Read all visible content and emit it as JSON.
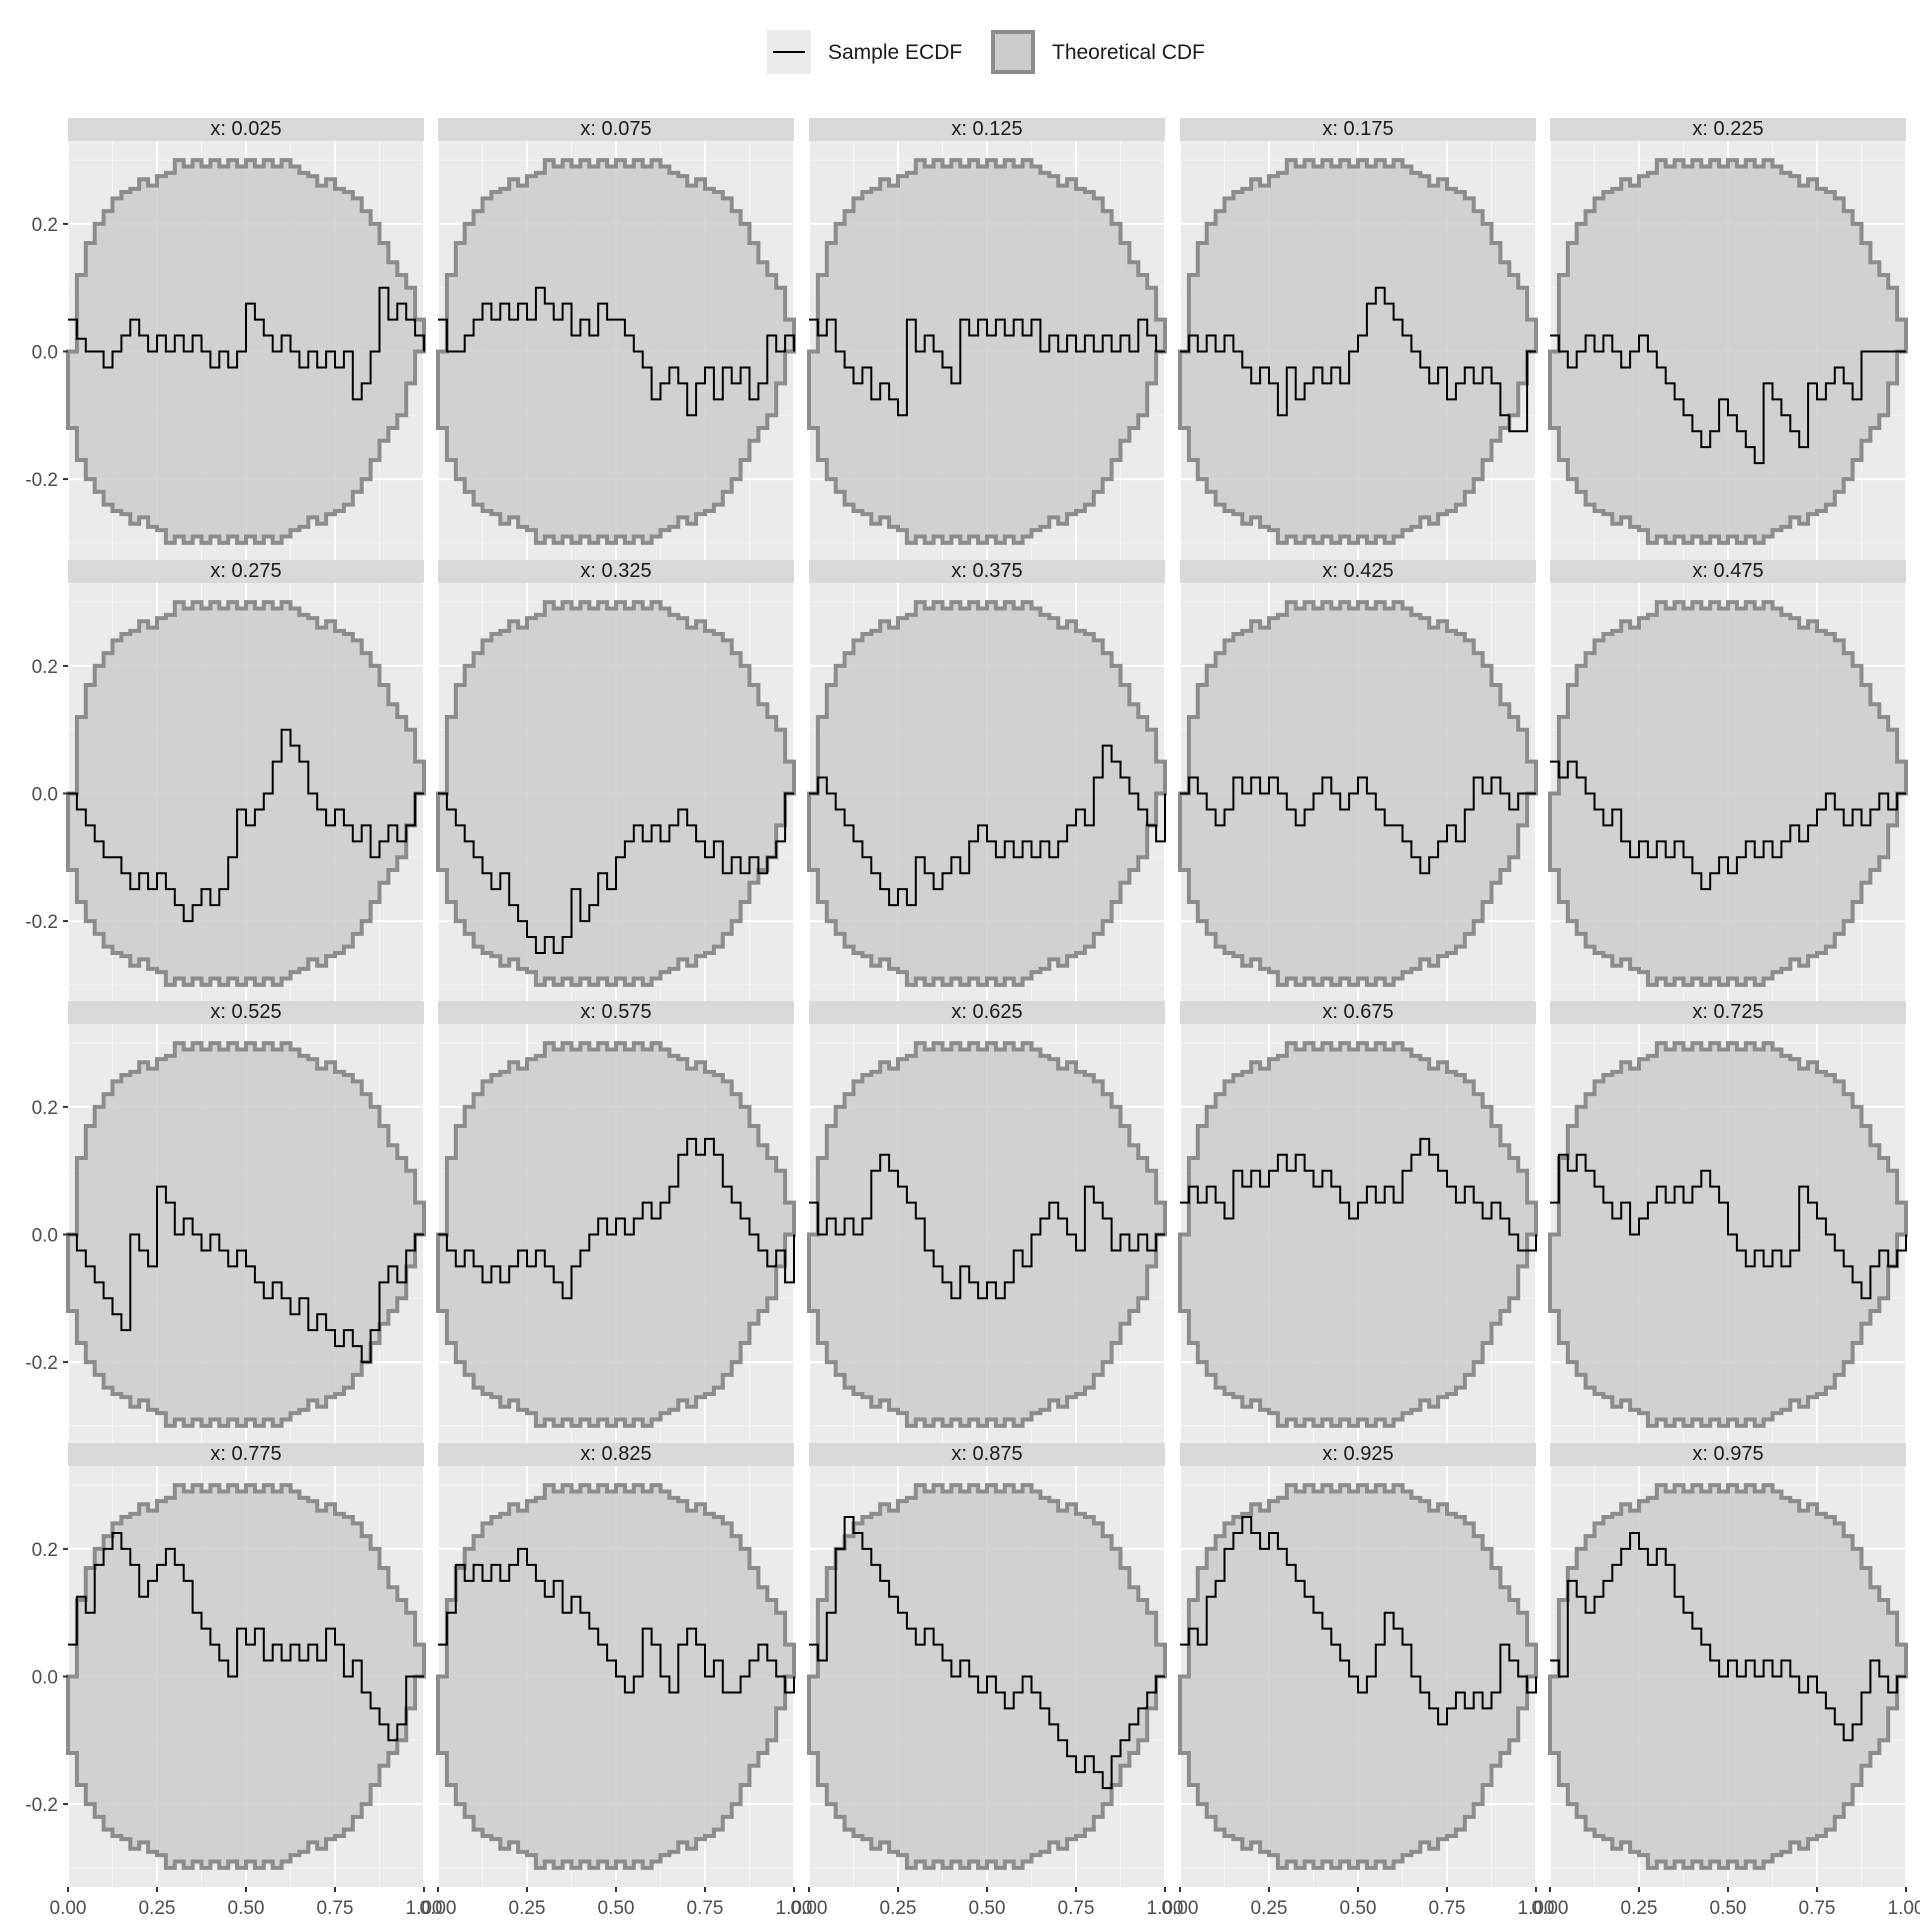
{
  "chart_data": {
    "type": "line",
    "layout": "facet-grid 4x5",
    "x_axis": {
      "range": [
        0,
        1
      ],
      "ticks": [
        "0.00",
        "0.25",
        "0.50",
        "0.75",
        "1.00"
      ]
    },
    "y_axis": {
      "range": [
        -0.33,
        0.33
      ],
      "ticks": [
        "0.2",
        "0.0",
        "-0.2"
      ]
    },
    "legend": {
      "placement": "top",
      "entries": [
        {
          "label": "Sample ECDF",
          "kind": "line",
          "color": "#000000"
        },
        {
          "label": "Theoretical CDF",
          "kind": "band",
          "fill": "#cccccc",
          "stroke": "#8c8c8c"
        }
      ]
    },
    "band_profile": {
      "note_key": "per-step upper envelope of theoretical band (symmetric lower = negative)",
      "x": [
        0,
        0.025,
        0.05,
        0.075,
        0.1,
        0.125,
        0.15,
        0.175,
        0.2,
        0.225,
        0.25,
        0.275,
        0.3,
        0.325,
        0.35,
        0.375,
        0.4,
        0.425,
        0.45,
        0.475,
        0.5,
        0.525,
        0.55,
        0.575,
        0.6,
        0.625,
        0.65,
        0.675,
        0.7,
        0.725,
        0.75,
        0.775,
        0.8,
        0.825,
        0.85,
        0.875,
        0.9,
        0.925,
        0.95,
        0.975,
        1.0
      ],
      "upper": [
        0.0,
        0.12,
        0.17,
        0.2,
        0.22,
        0.24,
        0.25,
        0.255,
        0.27,
        0.26,
        0.275,
        0.28,
        0.3,
        0.29,
        0.3,
        0.29,
        0.3,
        0.29,
        0.3,
        0.29,
        0.3,
        0.29,
        0.3,
        0.29,
        0.3,
        0.29,
        0.28,
        0.275,
        0.26,
        0.27,
        0.255,
        0.25,
        0.24,
        0.22,
        0.2,
        0.17,
        0.14,
        0.12,
        0.1,
        0.05,
        0.0
      ]
    },
    "panels": [
      {
        "label": "x: 0.025",
        "y": [
          0.05,
          0.02,
          0.0,
          0.0,
          -0.025,
          0.0,
          0.025,
          0.05,
          0.025,
          0.0,
          0.025,
          0.0,
          0.025,
          0.0,
          0.025,
          0.0,
          -0.025,
          0.0,
          -0.025,
          0.0,
          0.075,
          0.05,
          0.025,
          0.0,
          0.025,
          0.0,
          -0.025,
          0.0,
          -0.025,
          0.0,
          -0.025,
          0.0,
          -0.075,
          -0.05,
          0.0,
          0.1,
          0.05,
          0.075,
          0.05,
          0.025,
          0.0
        ]
      },
      {
        "label": "x: 0.075",
        "y": [
          0.05,
          0.0,
          0.0,
          0.025,
          0.05,
          0.075,
          0.05,
          0.075,
          0.05,
          0.075,
          0.05,
          0.1,
          0.075,
          0.05,
          0.075,
          0.025,
          0.05,
          0.025,
          0.075,
          0.05,
          0.05,
          0.025,
          0.0,
          -0.025,
          -0.075,
          -0.05,
          -0.025,
          -0.05,
          -0.1,
          -0.05,
          -0.025,
          -0.075,
          -0.025,
          -0.05,
          -0.025,
          -0.075,
          -0.05,
          0.025,
          0.0,
          0.025,
          0.0
        ]
      },
      {
        "label": "x: 0.125",
        "y": [
          0.05,
          0.025,
          0.05,
          0.0,
          -0.025,
          -0.05,
          -0.025,
          -0.075,
          -0.05,
          -0.075,
          -0.1,
          0.05,
          0.0,
          0.025,
          0.0,
          -0.025,
          -0.05,
          0.05,
          0.025,
          0.05,
          0.025,
          0.05,
          0.025,
          0.05,
          0.025,
          0.05,
          0.0,
          0.025,
          0.0,
          0.025,
          0.0,
          0.025,
          0.0,
          0.025,
          0.0,
          0.025,
          0.0,
          0.05,
          0.025,
          0.0,
          0.0
        ]
      },
      {
        "label": "x: 0.175",
        "y": [
          0.0,
          0.025,
          0.0,
          0.025,
          0.0,
          0.025,
          0.0,
          -0.025,
          -0.05,
          -0.025,
          -0.05,
          -0.1,
          -0.025,
          -0.075,
          -0.05,
          -0.025,
          -0.05,
          -0.025,
          -0.05,
          0.0,
          0.025,
          0.075,
          0.1,
          0.075,
          0.05,
          0.025,
          0.0,
          -0.025,
          -0.05,
          -0.025,
          -0.075,
          -0.05,
          -0.025,
          -0.05,
          -0.025,
          -0.05,
          -0.1,
          -0.125,
          -0.125,
          0.0,
          0.0
        ]
      },
      {
        "label": "x: 0.225",
        "y": [
          0.025,
          0.0,
          -0.025,
          0.0,
          0.025,
          0.0,
          0.025,
          0.0,
          -0.025,
          0.0,
          0.025,
          0.0,
          -0.025,
          -0.05,
          -0.075,
          -0.1,
          -0.125,
          -0.15,
          -0.125,
          -0.075,
          -0.1,
          -0.125,
          -0.15,
          -0.175,
          -0.05,
          -0.075,
          -0.1,
          -0.125,
          -0.15,
          -0.05,
          -0.075,
          -0.05,
          -0.025,
          -0.05,
          -0.075,
          0.0,
          0.0,
          0.0,
          0.0,
          0.0,
          0.0
        ]
      },
      {
        "label": "x: 0.275",
        "y": [
          0.0,
          -0.025,
          -0.05,
          -0.075,
          -0.1,
          -0.1,
          -0.125,
          -0.15,
          -0.125,
          -0.15,
          -0.125,
          -0.15,
          -0.175,
          -0.2,
          -0.175,
          -0.15,
          -0.175,
          -0.15,
          -0.1,
          -0.025,
          -0.05,
          -0.025,
          0.0,
          0.05,
          0.1,
          0.075,
          0.05,
          0.0,
          -0.025,
          -0.05,
          -0.025,
          -0.05,
          -0.075,
          -0.05,
          -0.1,
          -0.075,
          -0.05,
          -0.075,
          -0.05,
          0.0,
          0.0
        ]
      },
      {
        "label": "x: 0.325",
        "y": [
          0.0,
          -0.025,
          -0.05,
          -0.075,
          -0.1,
          -0.125,
          -0.15,
          -0.125,
          -0.175,
          -0.2,
          -0.225,
          -0.25,
          -0.225,
          -0.25,
          -0.225,
          -0.15,
          -0.2,
          -0.175,
          -0.125,
          -0.15,
          -0.1,
          -0.075,
          -0.05,
          -0.075,
          -0.05,
          -0.075,
          -0.05,
          -0.025,
          -0.05,
          -0.075,
          -0.1,
          -0.075,
          -0.125,
          -0.1,
          -0.125,
          -0.1,
          -0.125,
          -0.1,
          -0.075,
          0.0,
          0.0
        ]
      },
      {
        "label": "x: 0.375",
        "y": [
          0.0,
          0.025,
          0.0,
          -0.025,
          -0.05,
          -0.075,
          -0.1,
          -0.125,
          -0.15,
          -0.175,
          -0.15,
          -0.175,
          -0.1,
          -0.125,
          -0.15,
          -0.125,
          -0.1,
          -0.125,
          -0.075,
          -0.05,
          -0.075,
          -0.1,
          -0.075,
          -0.1,
          -0.075,
          -0.1,
          -0.075,
          -0.1,
          -0.075,
          -0.05,
          -0.025,
          -0.05,
          0.025,
          0.075,
          0.05,
          0.025,
          0.0,
          -0.025,
          -0.05,
          -0.075,
          0.0
        ]
      },
      {
        "label": "x: 0.425",
        "y": [
          0.0,
          0.025,
          0.0,
          -0.025,
          -0.05,
          -0.025,
          0.025,
          0.0,
          0.025,
          0.0,
          0.025,
          0.0,
          -0.025,
          -0.05,
          -0.025,
          0.0,
          0.025,
          0.0,
          -0.025,
          0.0,
          0.025,
          0.0,
          -0.025,
          -0.05,
          -0.05,
          -0.075,
          -0.1,
          -0.125,
          -0.1,
          -0.075,
          -0.05,
          -0.075,
          -0.025,
          0.025,
          0.0,
          0.025,
          0.0,
          -0.025,
          0.0,
          0.0,
          0.0
        ]
      },
      {
        "label": "x: 0.475",
        "y": [
          0.05,
          0.025,
          0.05,
          0.025,
          0.0,
          -0.025,
          -0.05,
          -0.025,
          -0.075,
          -0.1,
          -0.075,
          -0.1,
          -0.075,
          -0.1,
          -0.075,
          -0.1,
          -0.125,
          -0.15,
          -0.125,
          -0.1,
          -0.125,
          -0.1,
          -0.075,
          -0.1,
          -0.075,
          -0.1,
          -0.075,
          -0.05,
          -0.075,
          -0.05,
          -0.025,
          0.0,
          -0.025,
          -0.05,
          -0.025,
          -0.05,
          -0.025,
          0.0,
          -0.025,
          0.0,
          0.0
        ]
      },
      {
        "label": "x: 0.525",
        "y": [
          0.0,
          -0.025,
          -0.05,
          -0.075,
          -0.1,
          -0.125,
          -0.15,
          0.0,
          -0.025,
          -0.05,
          0.075,
          0.05,
          0.0,
          0.025,
          0.0,
          -0.025,
          0.0,
          -0.025,
          -0.05,
          -0.025,
          -0.05,
          -0.075,
          -0.1,
          -0.075,
          -0.1,
          -0.125,
          -0.1,
          -0.15,
          -0.125,
          -0.15,
          -0.175,
          -0.15,
          -0.175,
          -0.2,
          -0.15,
          -0.075,
          -0.05,
          -0.075,
          -0.025,
          0.0,
          0.0
        ]
      },
      {
        "label": "x: 0.575",
        "y": [
          0.0,
          -0.025,
          -0.05,
          -0.025,
          -0.05,
          -0.075,
          -0.05,
          -0.075,
          -0.05,
          -0.025,
          -0.05,
          -0.025,
          -0.05,
          -0.075,
          -0.1,
          -0.05,
          -0.025,
          0.0,
          0.025,
          0.0,
          0.025,
          0.0,
          0.025,
          0.05,
          0.025,
          0.05,
          0.075,
          0.125,
          0.15,
          0.125,
          0.15,
          0.125,
          0.075,
          0.05,
          0.025,
          0.0,
          -0.025,
          -0.05,
          -0.025,
          -0.075,
          0.0
        ]
      },
      {
        "label": "x: 0.625",
        "y": [
          0.05,
          0.0,
          0.025,
          0.0,
          0.025,
          0.0,
          0.025,
          0.1,
          0.125,
          0.1,
          0.075,
          0.05,
          0.025,
          -0.025,
          -0.05,
          -0.075,
          -0.1,
          -0.05,
          -0.075,
          -0.1,
          -0.075,
          -0.1,
          -0.075,
          -0.025,
          -0.05,
          0.0,
          0.025,
          0.05,
          0.025,
          0.0,
          -0.025,
          0.075,
          0.05,
          0.025,
          -0.025,
          0.0,
          -0.025,
          0.0,
          -0.025,
          0.0,
          0.0
        ]
      },
      {
        "label": "x: 0.675",
        "y": [
          0.05,
          0.075,
          0.05,
          0.075,
          0.05,
          0.025,
          0.1,
          0.075,
          0.1,
          0.075,
          0.1,
          0.125,
          0.1,
          0.125,
          0.1,
          0.075,
          0.1,
          0.075,
          0.05,
          0.025,
          0.05,
          0.075,
          0.05,
          0.075,
          0.05,
          0.1,
          0.125,
          0.15,
          0.125,
          0.1,
          0.075,
          0.05,
          0.075,
          0.05,
          0.025,
          0.05,
          0.025,
          0.0,
          -0.025,
          -0.025,
          0.0
        ]
      },
      {
        "label": "x: 0.725",
        "y": [
          0.05,
          0.125,
          0.1,
          0.125,
          0.1,
          0.075,
          0.05,
          0.025,
          0.05,
          0.0,
          0.025,
          0.05,
          0.075,
          0.05,
          0.075,
          0.05,
          0.075,
          0.1,
          0.075,
          0.05,
          0.0,
          -0.025,
          -0.05,
          -0.025,
          -0.05,
          -0.025,
          -0.05,
          -0.025,
          0.075,
          0.05,
          0.025,
          0.0,
          -0.025,
          -0.05,
          -0.075,
          -0.1,
          -0.05,
          -0.025,
          -0.05,
          -0.025,
          0.0
        ]
      },
      {
        "label": "x: 0.775",
        "y": [
          0.05,
          0.125,
          0.1,
          0.175,
          0.2,
          0.225,
          0.2,
          0.175,
          0.125,
          0.15,
          0.175,
          0.2,
          0.175,
          0.15,
          0.1,
          0.075,
          0.05,
          0.025,
          0.0,
          0.075,
          0.05,
          0.075,
          0.025,
          0.05,
          0.025,
          0.05,
          0.025,
          0.05,
          0.025,
          0.075,
          0.05,
          0.0,
          0.025,
          -0.025,
          -0.05,
          -0.075,
          -0.1,
          -0.075,
          0.0,
          0.0,
          0.0
        ]
      },
      {
        "label": "x: 0.825",
        "y": [
          0.05,
          0.1,
          0.175,
          0.15,
          0.175,
          0.15,
          0.175,
          0.15,
          0.175,
          0.2,
          0.175,
          0.15,
          0.125,
          0.15,
          0.1,
          0.125,
          0.1,
          0.075,
          0.05,
          0.025,
          0.0,
          -0.025,
          0.0,
          0.075,
          0.05,
          0.0,
          -0.025,
          0.05,
          0.075,
          0.05,
          0.0,
          0.025,
          -0.025,
          -0.025,
          0.0,
          0.025,
          0.05,
          0.025,
          0.0,
          -0.025,
          0.0
        ]
      },
      {
        "label": "x: 0.875",
        "y": [
          0.05,
          0.025,
          0.1,
          0.2,
          0.25,
          0.225,
          0.2,
          0.175,
          0.15,
          0.125,
          0.1,
          0.075,
          0.05,
          0.075,
          0.05,
          0.025,
          0.0,
          0.025,
          0.0,
          -0.025,
          0.0,
          -0.025,
          -0.05,
          -0.025,
          0.0,
          -0.025,
          -0.05,
          -0.075,
          -0.1,
          -0.125,
          -0.15,
          -0.125,
          -0.15,
          -0.175,
          -0.125,
          -0.1,
          -0.075,
          -0.05,
          -0.025,
          0.0,
          0.0
        ]
      },
      {
        "label": "x: 0.925",
        "y": [
          0.05,
          0.075,
          0.05,
          0.125,
          0.15,
          0.2,
          0.225,
          0.25,
          0.225,
          0.2,
          0.225,
          0.2,
          0.175,
          0.15,
          0.125,
          0.1,
          0.075,
          0.05,
          0.025,
          0.0,
          -0.025,
          0.0,
          0.05,
          0.1,
          0.075,
          0.05,
          0.0,
          -0.025,
          -0.05,
          -0.075,
          -0.05,
          -0.025,
          -0.05,
          -0.025,
          -0.05,
          -0.025,
          0.05,
          0.025,
          0.0,
          -0.025,
          0.0
        ]
      },
      {
        "label": "x: 0.975",
        "y": [
          0.025,
          0.0,
          0.15,
          0.125,
          0.1,
          0.125,
          0.15,
          0.175,
          0.2,
          0.225,
          0.2,
          0.175,
          0.2,
          0.175,
          0.125,
          0.1,
          0.075,
          0.05,
          0.025,
          0.0,
          0.025,
          0.0,
          0.025,
          0.0,
          0.025,
          0.0,
          0.025,
          0.0,
          -0.025,
          0.0,
          -0.025,
          -0.05,
          -0.075,
          -0.1,
          -0.075,
          -0.025,
          0.025,
          0.0,
          -0.025,
          0.0,
          0.0
        ]
      }
    ]
  }
}
